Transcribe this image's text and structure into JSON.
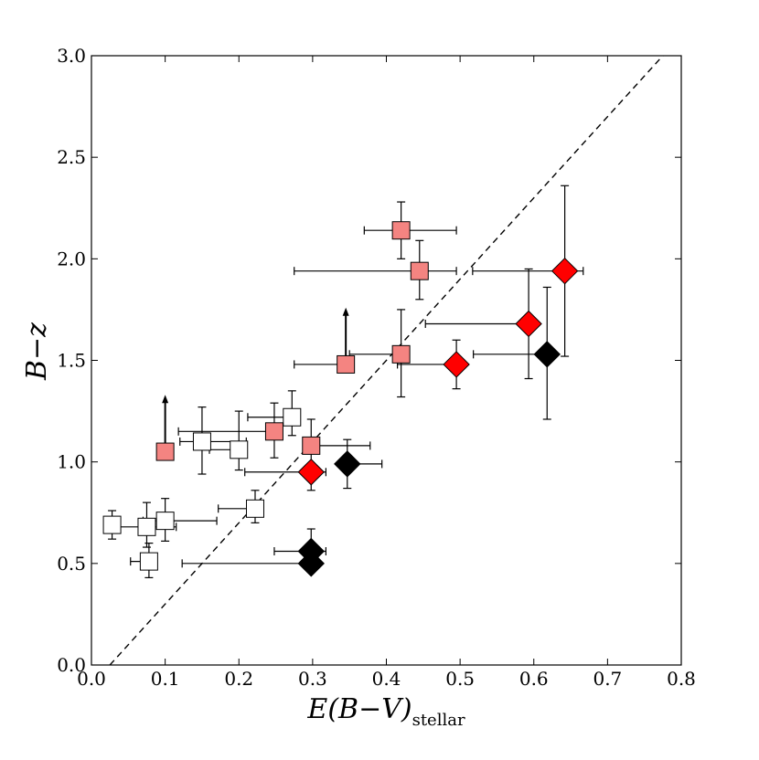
{
  "chart_data": {
    "type": "scatter",
    "title": "",
    "xlabel": {
      "main": "E(B−V)",
      "subscript": "stellar"
    },
    "ylabel": "B−z",
    "xlim": [
      0.0,
      0.8
    ],
    "ylim": [
      0.0,
      3.0
    ],
    "xticks": [
      "0.0",
      "0.1",
      "0.2",
      "0.3",
      "0.4",
      "0.5",
      "0.6",
      "0.7",
      "0.8"
    ],
    "yticks": [
      "0.0",
      "0.5",
      "1.0",
      "1.5",
      "2.0",
      "2.5",
      "3.0"
    ],
    "grid": false,
    "reference_line": {
      "style": "dashed",
      "x": [
        0.025,
        0.775
      ],
      "y": [
        0.0,
        3.0
      ]
    },
    "colors": {
      "white": "#ffffff",
      "pink": "#f48481",
      "red": "#ff0000",
      "black": "#000000"
    },
    "series": [
      {
        "name": "white-squares",
        "marker": "square",
        "color": "#ffffff",
        "points": [
          {
            "x": 0.028,
            "y": 0.69,
            "xerr": [
              0.0,
              0.0
            ],
            "yerr": [
              0.07,
              0.07
            ]
          },
          {
            "x": 0.075,
            "y": 0.68,
            "xerr": [
              0.04,
              0.04
            ],
            "yerr": [
              0.1,
              0.12
            ]
          },
          {
            "x": 0.1,
            "y": 0.71,
            "xerr": [
              0.03,
              0.07
            ],
            "yerr": [
              0.1,
              0.11
            ]
          },
          {
            "x": 0.078,
            "y": 0.51,
            "xerr": [
              0.025,
              0.0
            ],
            "yerr": [
              0.08,
              0.09
            ]
          },
          {
            "x": 0.15,
            "y": 1.1,
            "xerr": [
              0.03,
              0.06
            ],
            "yerr": [
              0.16,
              0.17
            ]
          },
          {
            "x": 0.2,
            "y": 1.06,
            "xerr": [
              0.04,
              0.0
            ],
            "yerr": [
              0.1,
              0.19
            ]
          },
          {
            "x": 0.222,
            "y": 0.77,
            "xerr": [
              0.05,
              0.0
            ],
            "yerr": [
              0.07,
              0.09
            ]
          },
          {
            "x": 0.272,
            "y": 1.22,
            "xerr": [
              0.06,
              0.0
            ],
            "yerr": [
              0.09,
              0.13
            ]
          }
        ]
      },
      {
        "name": "pink-squares",
        "marker": "square",
        "color": "#f48481",
        "points": [
          {
            "x": 0.1,
            "y": 1.05,
            "xerr": [
              0.0,
              0.0
            ],
            "yerr": [
              0.0,
              0.0
            ],
            "lower_limit": true,
            "arrow_to": 1.33
          },
          {
            "x": 0.248,
            "y": 1.15,
            "xerr": [
              0.13,
              0.0
            ],
            "yerr": [
              0.13,
              0.14
            ]
          },
          {
            "x": 0.298,
            "y": 1.08,
            "xerr": [
              0.0,
              0.08
            ],
            "yerr": [
              0.1,
              0.13
            ]
          },
          {
            "x": 0.345,
            "y": 1.48,
            "xerr": [
              0.07,
              0.0
            ],
            "yerr": [
              0.0,
              0.0
            ],
            "lower_limit": true,
            "arrow_to": 1.76
          },
          {
            "x": 0.42,
            "y": 1.53,
            "xerr": [
              0.07,
              0.0
            ],
            "yerr": [
              0.21,
              0.22
            ]
          },
          {
            "x": 0.42,
            "y": 2.14,
            "xerr": [
              0.05,
              0.075
            ],
            "yerr": [
              0.14,
              0.14
            ]
          },
          {
            "x": 0.445,
            "y": 1.94,
            "xerr": [
              0.17,
              0.05
            ],
            "yerr": [
              0.14,
              0.15
            ]
          }
        ]
      },
      {
        "name": "red-diamonds",
        "marker": "diamond",
        "color": "#ff0000",
        "points": [
          {
            "x": 0.298,
            "y": 0.95,
            "xerr": [
              0.09,
              0.02
            ],
            "yerr": [
              0.09,
              0.0
            ]
          },
          {
            "x": 0.495,
            "y": 1.48,
            "xerr": [
              0.08,
              0.0
            ],
            "yerr": [
              0.12,
              0.12
            ]
          },
          {
            "x": 0.593,
            "y": 1.68,
            "xerr": [
              0.14,
              0.0
            ],
            "yerr": [
              0.27,
              0.27
            ]
          },
          {
            "x": 0.642,
            "y": 1.94,
            "xerr": [
              0.125,
              0.025
            ],
            "yerr": [
              0.42,
              0.42
            ]
          }
        ]
      },
      {
        "name": "black-diamonds",
        "marker": "diamond",
        "color": "#000000",
        "points": [
          {
            "x": 0.298,
            "y": 0.56,
            "xerr": [
              0.05,
              0.02
            ],
            "yerr": [
              0.0,
              0.11
            ]
          },
          {
            "x": 0.298,
            "y": 0.5,
            "xerr": [
              0.175,
              0.0
            ],
            "yerr": [
              0.0,
              0.0
            ]
          },
          {
            "x": 0.347,
            "y": 0.99,
            "xerr": [
              0.0,
              0.047
            ],
            "yerr": [
              0.12,
              0.12
            ]
          },
          {
            "x": 0.618,
            "y": 1.53,
            "xerr": [
              0.1,
              0.0
            ],
            "yerr": [
              0.32,
              0.33
            ]
          }
        ]
      }
    ]
  }
}
